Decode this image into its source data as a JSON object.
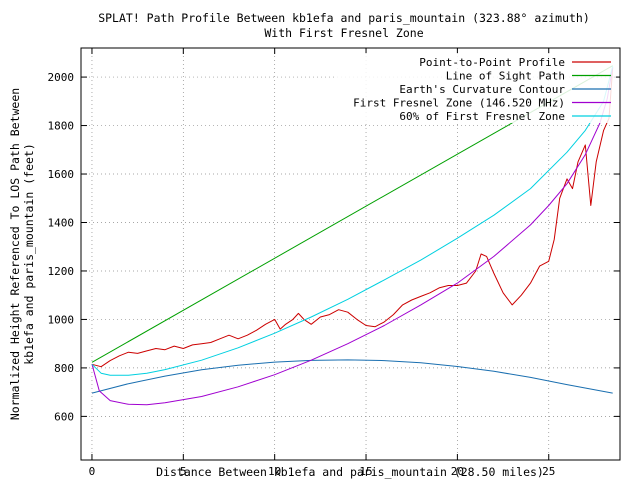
{
  "chart_data": {
    "type": "line",
    "title": "SPLAT! Path Profile Between kb1efa and paris_mountain (323.88° azimuth)",
    "subtitle": "With First Fresnel Zone",
    "xlabel": "Distance Between kb1efa and paris_mountain (28.50 miles)",
    "ylabel_line1": "Normalized Height Referenced To LOS Path Between",
    "ylabel_line2": "kb1efa and paris_mountain (feet)",
    "xlim": [
      -0.6,
      28.9
    ],
    "ylim": [
      420,
      2120
    ],
    "x_ticks": [
      0,
      5,
      10,
      15,
      20,
      25
    ],
    "x_tick_labels": [
      "0",
      "5",
      "10",
      "15",
      "20",
      "25"
    ],
    "y_ticks": [
      600,
      800,
      1000,
      1200,
      1400,
      1600,
      1800,
      2000
    ],
    "y_tick_labels": [
      "600",
      "800",
      "1000",
      "1200",
      "1400",
      "1600",
      "1800",
      "2000"
    ],
    "grid": true,
    "legend_position": "top-right",
    "series": [
      {
        "name": "Point-to-Point Profile",
        "color": "#cc0000",
        "points": [
          [
            0,
            815
          ],
          [
            0.5,
            805
          ],
          [
            1,
            830
          ],
          [
            1.5,
            850
          ],
          [
            2,
            865
          ],
          [
            2.5,
            860
          ],
          [
            3,
            870
          ],
          [
            3.5,
            880
          ],
          [
            4,
            875
          ],
          [
            4.5,
            890
          ],
          [
            5,
            880
          ],
          [
            5.5,
            895
          ],
          [
            6,
            900
          ],
          [
            6.5,
            905
          ],
          [
            7,
            920
          ],
          [
            7.5,
            935
          ],
          [
            8,
            920
          ],
          [
            8.5,
            935
          ],
          [
            9,
            955
          ],
          [
            9.5,
            980
          ],
          [
            10,
            1000
          ],
          [
            10.3,
            960
          ],
          [
            10.6,
            980
          ],
          [
            11,
            1000
          ],
          [
            11.3,
            1025
          ],
          [
            11.6,
            1000
          ],
          [
            12,
            980
          ],
          [
            12.5,
            1010
          ],
          [
            13,
            1020
          ],
          [
            13.5,
            1040
          ],
          [
            14,
            1030
          ],
          [
            14.5,
            1000
          ],
          [
            15,
            975
          ],
          [
            15.5,
            970
          ],
          [
            16,
            990
          ],
          [
            16.5,
            1020
          ],
          [
            17,
            1060
          ],
          [
            17.5,
            1080
          ],
          [
            18,
            1095
          ],
          [
            18.5,
            1110
          ],
          [
            19,
            1130
          ],
          [
            19.5,
            1140
          ],
          [
            20,
            1140
          ],
          [
            20.5,
            1150
          ],
          [
            21,
            1200
          ],
          [
            21.3,
            1270
          ],
          [
            21.6,
            1260
          ],
          [
            22,
            1190
          ],
          [
            22.5,
            1110
          ],
          [
            23,
            1060
          ],
          [
            23.5,
            1100
          ],
          [
            24,
            1150
          ],
          [
            24.5,
            1220
          ],
          [
            25,
            1240
          ],
          [
            25.3,
            1330
          ],
          [
            25.6,
            1500
          ],
          [
            26,
            1580
          ],
          [
            26.3,
            1540
          ],
          [
            26.6,
            1650
          ],
          [
            27,
            1720
          ],
          [
            27.3,
            1470
          ],
          [
            27.6,
            1650
          ],
          [
            28,
            1780
          ],
          [
            28.3,
            1830
          ],
          [
            28.5,
            2040
          ]
        ]
      },
      {
        "name": "Line of Sight Path",
        "color": "#00a000",
        "points": [
          [
            0,
            823
          ],
          [
            28.5,
            2047
          ]
        ]
      },
      {
        "name": "Earth's Curvature Contour",
        "color": "#1a6fb0",
        "points": [
          [
            0,
            696
          ],
          [
            2,
            735
          ],
          [
            4,
            766
          ],
          [
            6,
            792
          ],
          [
            8,
            811
          ],
          [
            10,
            824
          ],
          [
            12,
            831
          ],
          [
            14,
            833
          ],
          [
            16,
            830
          ],
          [
            18,
            821
          ],
          [
            20,
            806
          ],
          [
            22,
            786
          ],
          [
            24,
            761
          ],
          [
            26,
            731
          ],
          [
            28.5,
            696
          ]
        ]
      },
      {
        "name": "First Fresnel Zone (146.520 MHz)",
        "color": "#a000d0",
        "points": [
          [
            0,
            815
          ],
          [
            0.4,
            705
          ],
          [
            1,
            665
          ],
          [
            2,
            650
          ],
          [
            3,
            648
          ],
          [
            4,
            656
          ],
          [
            6,
            682
          ],
          [
            8,
            722
          ],
          [
            10,
            772
          ],
          [
            12,
            832
          ],
          [
            14,
            900
          ],
          [
            16,
            975
          ],
          [
            18,
            1060
          ],
          [
            20,
            1150
          ],
          [
            22,
            1260
          ],
          [
            24,
            1390
          ],
          [
            25,
            1470
          ],
          [
            26,
            1560
          ],
          [
            27,
            1680
          ],
          [
            27.8,
            1810
          ],
          [
            28.2,
            1910
          ],
          [
            28.5,
            2040
          ]
        ]
      },
      {
        "name": "60% of First Fresnel Zone",
        "color": "#00d0e0",
        "points": [
          [
            0,
            815
          ],
          [
            0.5,
            778
          ],
          [
            1,
            770
          ],
          [
            2,
            770
          ],
          [
            3,
            778
          ],
          [
            4,
            793
          ],
          [
            6,
            832
          ],
          [
            8,
            883
          ],
          [
            10,
            943
          ],
          [
            12,
            1010
          ],
          [
            14,
            1083
          ],
          [
            16,
            1163
          ],
          [
            18,
            1245
          ],
          [
            20,
            1335
          ],
          [
            22,
            1430
          ],
          [
            24,
            1540
          ],
          [
            26,
            1690
          ],
          [
            27,
            1780
          ],
          [
            28,
            1900
          ],
          [
            28.5,
            2045
          ]
        ]
      }
    ]
  }
}
